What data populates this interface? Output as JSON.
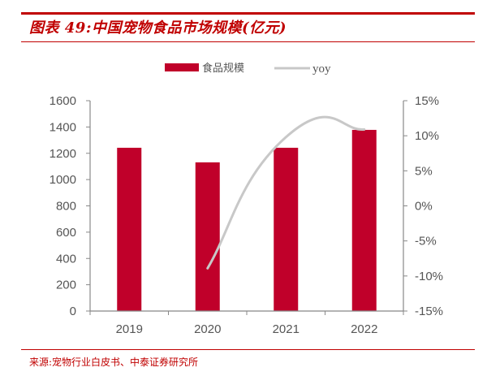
{
  "title": "图表 49:中国宠物食品市场规模(亿元)",
  "source": "来源:宠物行业白皮书、中泰证券研究所",
  "colors": {
    "bar": "#c0002a",
    "line": "#c8c8c8",
    "accent": "#c00000",
    "axis": "#888888"
  },
  "chart_data": {
    "type": "bar+line",
    "title": "中国宠物食品市场规模(亿元)",
    "categories": [
      "2019",
      "2020",
      "2021",
      "2022"
    ],
    "series": [
      {
        "name": "食品规模",
        "type": "bar",
        "axis": "left",
        "values": [
          1242,
          1131,
          1242,
          1378
        ]
      },
      {
        "name": "yoy",
        "type": "line",
        "axis": "right",
        "values": [
          null,
          -8.9,
          9.8,
          10.9
        ],
        "smooth": true
      }
    ],
    "left_axis": {
      "ylim": [
        0,
        1600
      ],
      "ticks": [
        "0",
        "200",
        "400",
        "600",
        "800",
        "1000",
        "1200",
        "1400",
        "1600"
      ]
    },
    "right_axis": {
      "ylim": [
        -15,
        15
      ],
      "ticks": [
        "-15%",
        "-10%",
        "-5%",
        "0%",
        "5%",
        "10%",
        "15%"
      ],
      "tick_values": [
        -15,
        -10,
        -5,
        0,
        5,
        10,
        15
      ]
    },
    "legend": {
      "placement": "top-center",
      "entries": [
        "食品规模",
        "yoy"
      ]
    },
    "grid": false
  }
}
